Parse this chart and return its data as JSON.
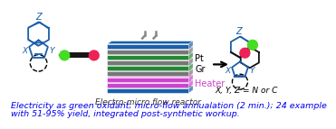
{
  "bg_color": "#ffffff",
  "caption_line1": "Electricity as green oxidant; micro-flow annualation (2 min.); 24 example",
  "caption_line2": "with 51-95% yield, integrated post-synthetic workup.",
  "caption_color": "#0000ee",
  "caption_fontsize": 6.8,
  "reactor_label": "Electro-micro flow reactor",
  "reactor_label_color": "#333333",
  "pt_label": "Pt",
  "gr_label": "Gr",
  "heater_label": "Heater",
  "xyz_label": "X, Y, Z = N or C",
  "xyz_color": "#000000",
  "blue_color": "#1a5faa",
  "green_color": "#44dd22",
  "red_color": "#ee2255",
  "black_color": "#111111",
  "gray_color": "#999999",
  "purple_color": "#cc44cc",
  "layer_colors": [
    "#1a5faa",
    "#cc44cc",
    "#cc44cc",
    "#777777",
    "#228833",
    "#777777",
    "#228833",
    "#777777",
    "#1a5faa"
  ]
}
